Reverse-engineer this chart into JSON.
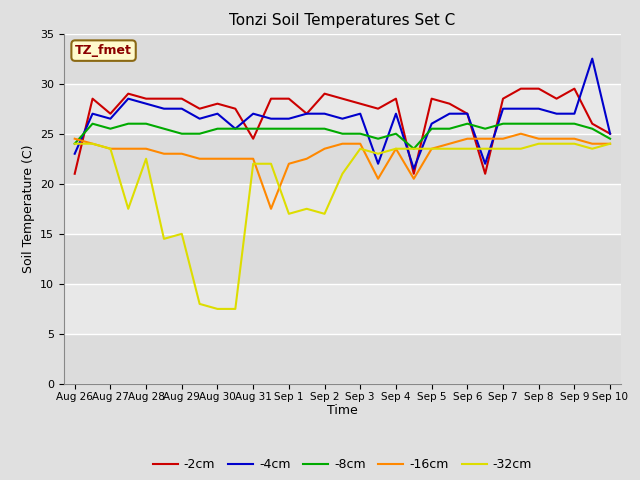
{
  "title": "Tonzi Soil Temperatures Set C",
  "xlabel": "Time",
  "ylabel": "Soil Temperature (C)",
  "annotation_label": "TZ_fmet",
  "annotation_color": "#8B0000",
  "annotation_bg": "#FFFACD",
  "annotation_edge": "#8B6914",
  "ylim": [
    0,
    35
  ],
  "yticks": [
    0,
    5,
    10,
    15,
    20,
    25,
    30,
    35
  ],
  "x_labels": [
    "Aug 26",
    "Aug 27",
    "Aug 28",
    "Aug 29",
    "Aug 30",
    "Aug 31",
    "Sep 1",
    "Sep 2",
    "Sep 3",
    "Sep 4",
    "Sep 5",
    "Sep 6",
    "Sep 7",
    "Sep 8",
    "Sep 9",
    "Sep 10"
  ],
  "background_color": "#E0E0E0",
  "plot_bg_light": "#DCDCDC",
  "plot_bg_dark": "#F0F0F0",
  "grid_color": "#FFFFFF",
  "series": {
    "-2cm": {
      "color": "#CC0000",
      "x": [
        0,
        0.5,
        1,
        1.5,
        2,
        2.5,
        3,
        3.5,
        4,
        4.5,
        5,
        5.5,
        6,
        6.5,
        7,
        7.5,
        8,
        8.5,
        9,
        9.5,
        10,
        10.5,
        11,
        11.5,
        12,
        12.5,
        13,
        13.5,
        14,
        14.5,
        15
      ],
      "y": [
        21.0,
        28.5,
        27.0,
        29.0,
        28.5,
        28.5,
        28.5,
        27.5,
        28.0,
        27.5,
        24.5,
        28.5,
        28.5,
        27.0,
        29.0,
        28.5,
        28.0,
        27.5,
        28.5,
        21.0,
        28.5,
        28.0,
        27.0,
        21.0,
        28.5,
        29.5,
        29.5,
        28.5,
        29.5,
        26.0,
        25.0
      ]
    },
    "-4cm": {
      "color": "#0000CC",
      "x": [
        0,
        0.5,
        1,
        1.5,
        2,
        2.5,
        3,
        3.5,
        4,
        4.5,
        5,
        5.5,
        6,
        6.5,
        7,
        7.5,
        8,
        8.5,
        9,
        9.5,
        10,
        10.5,
        11,
        11.5,
        12,
        12.5,
        13,
        13.5,
        14,
        14.5,
        15
      ],
      "y": [
        23.0,
        27.0,
        26.5,
        28.5,
        28.0,
        27.5,
        27.5,
        26.5,
        27.0,
        25.5,
        27.0,
        26.5,
        26.5,
        27.0,
        27.0,
        26.5,
        27.0,
        22.0,
        27.0,
        21.5,
        26.0,
        27.0,
        27.0,
        22.0,
        27.5,
        27.5,
        27.5,
        27.0,
        27.0,
        32.5,
        25.0
      ]
    },
    "-8cm": {
      "color": "#00AA00",
      "x": [
        0,
        0.5,
        1,
        1.5,
        2,
        2.5,
        3,
        3.5,
        4,
        4.5,
        5,
        5.5,
        6,
        6.5,
        7,
        7.5,
        8,
        8.5,
        9,
        9.5,
        10,
        10.5,
        11,
        11.5,
        12,
        12.5,
        13,
        13.5,
        14,
        14.5,
        15
      ],
      "y": [
        24.0,
        26.0,
        25.5,
        26.0,
        26.0,
        25.5,
        25.0,
        25.0,
        25.5,
        25.5,
        25.5,
        25.5,
        25.5,
        25.5,
        25.5,
        25.0,
        25.0,
        24.5,
        25.0,
        23.5,
        25.5,
        25.5,
        26.0,
        25.5,
        26.0,
        26.0,
        26.0,
        26.0,
        26.0,
        25.5,
        24.5
      ]
    },
    "-16cm": {
      "color": "#FF8800",
      "x": [
        0,
        0.5,
        1,
        1.5,
        2,
        2.5,
        3,
        3.5,
        4,
        4.5,
        5,
        5.5,
        6,
        6.5,
        7,
        7.5,
        8,
        8.5,
        9,
        9.5,
        10,
        10.5,
        11,
        11.5,
        12,
        12.5,
        13,
        13.5,
        14,
        14.5,
        15
      ],
      "y": [
        24.5,
        24.0,
        23.5,
        23.5,
        23.5,
        23.0,
        23.0,
        22.5,
        22.5,
        22.5,
        22.5,
        17.5,
        22.0,
        22.5,
        23.5,
        24.0,
        24.0,
        20.5,
        23.5,
        20.5,
        23.5,
        24.0,
        24.5,
        24.5,
        24.5,
        25.0,
        24.5,
        24.5,
        24.5,
        24.0,
        24.0
      ]
    },
    "-32cm": {
      "color": "#DDDD00",
      "x": [
        0,
        0.5,
        1,
        1.5,
        2,
        2.5,
        3,
        3.5,
        4,
        4.5,
        5,
        5.5,
        6,
        6.5,
        7,
        7.5,
        8,
        8.5,
        9,
        9.5,
        10,
        10.5,
        11,
        11.5,
        12,
        12.5,
        13,
        13.5,
        14,
        14.5,
        15
      ],
      "y": [
        24.0,
        24.0,
        23.5,
        17.5,
        22.5,
        14.5,
        15.0,
        8.0,
        7.5,
        7.5,
        22.0,
        22.0,
        17.0,
        17.5,
        17.0,
        21.0,
        23.5,
        23.0,
        23.5,
        23.5,
        23.5,
        23.5,
        23.5,
        23.5,
        23.5,
        23.5,
        24.0,
        24.0,
        24.0,
        23.5,
        24.0
      ]
    }
  }
}
